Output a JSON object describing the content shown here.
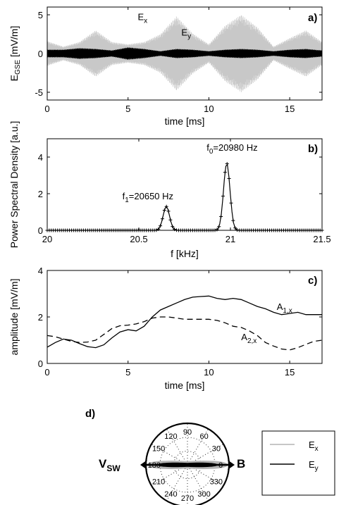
{
  "chart_data": [
    {
      "type": "line",
      "panel": "a)",
      "xlabel": "time [ms]",
      "ylabel": "E",
      "ylabel_sub": "GSE",
      "ylabel_unit": " [mV/m]",
      "xlim": [
        0,
        17
      ],
      "ylim": [
        -6,
        6
      ],
      "xticks": [
        0,
        5,
        10,
        15
      ],
      "yticks": [
        -5,
        0,
        5
      ],
      "annotations": [
        {
          "text": "E",
          "sub": "x",
          "x": 5.6,
          "y": 4.3
        },
        {
          "text": "E",
          "sub": "y",
          "x": 8.3,
          "y": 2.3
        }
      ],
      "series": [
        {
          "name": "Ex",
          "color": "#c8c8c8",
          "kind": "beat-envelope",
          "envelope_t": [
            0,
            1,
            2,
            3,
            4,
            5,
            6,
            7,
            8,
            9,
            10,
            11,
            12,
            13,
            14,
            15,
            16,
            17
          ],
          "envelope_amp": [
            1.6,
            0.9,
            1.5,
            3.0,
            1.5,
            1.2,
            1.5,
            2.5,
            4.8,
            2.6,
            1.2,
            3.6,
            5.0,
            3.4,
            0.9,
            2.0,
            3.0,
            1.5
          ]
        },
        {
          "name": "Ey",
          "color": "#000000",
          "kind": "beat-envelope",
          "envelope_t": [
            0,
            1,
            2,
            3,
            4,
            5,
            6,
            7,
            8,
            9,
            10,
            11,
            12,
            13,
            14,
            15,
            16,
            17
          ],
          "envelope_amp": [
            0.5,
            0.5,
            0.7,
            0.6,
            0.4,
            0.8,
            0.6,
            0.3,
            0.6,
            0.5,
            0.3,
            0.5,
            0.6,
            0.5,
            0.3,
            0.5,
            0.6,
            0.4
          ]
        }
      ]
    },
    {
      "type": "line",
      "panel": "b)",
      "xlabel": "f [kHz]",
      "ylabel": "Power Spectral Density [a.u.]",
      "xlim": [
        20,
        21.5
      ],
      "ylim": [
        0,
        5
      ],
      "xticks": [
        20,
        20.5,
        21,
        21.5
      ],
      "xtick_labels": [
        "20",
        "20.5",
        "21",
        "21.5"
      ],
      "yticks": [
        0,
        2,
        4
      ],
      "annotations": [
        {
          "text": "f",
          "sub": "0",
          "rest": "=20980 Hz",
          "x": 20.87,
          "y": 4.35
        },
        {
          "text": "f",
          "sub": "1",
          "rest": "=20650 Hz",
          "x": 20.41,
          "y": 1.7
        }
      ],
      "series": [
        {
          "name": "PSD",
          "marker": "+",
          "peaks": [
            {
              "center": 20.98,
              "height": 3.65,
              "width": 0.025
            },
            {
              "center": 20.65,
              "height": 1.3,
              "width": 0.025
            }
          ]
        }
      ]
    },
    {
      "type": "line",
      "panel": "c)",
      "xlabel": "time [ms]",
      "ylabel": "amplitude [mV/m]",
      "xlim": [
        0,
        17
      ],
      "ylim": [
        0,
        4
      ],
      "xticks": [
        0,
        5,
        10,
        15
      ],
      "yticks": [
        0,
        2,
        4
      ],
      "annotations": [
        {
          "text": "A",
          "sub": "1,x",
          "x": 14.2,
          "y": 2.3
        },
        {
          "text": "A",
          "sub": "2,x",
          "x": 12.0,
          "y": 1.0
        }
      ],
      "series": [
        {
          "name": "A1,x",
          "style": "solid",
          "x": [
            0,
            0.5,
            1,
            1.5,
            2,
            2.5,
            3,
            3.5,
            4,
            4.5,
            5,
            5.5,
            6,
            6.5,
            7,
            7.5,
            8,
            8.5,
            9,
            9.5,
            10,
            10.5,
            11,
            11.5,
            12,
            12.5,
            13,
            13.5,
            14,
            14.5,
            15,
            15.5,
            16,
            16.5,
            17
          ],
          "y": [
            0.7,
            0.9,
            1.05,
            1.0,
            0.85,
            0.72,
            0.68,
            0.8,
            1.1,
            1.35,
            1.45,
            1.4,
            1.6,
            2.0,
            2.3,
            2.45,
            2.6,
            2.75,
            2.85,
            2.88,
            2.9,
            2.8,
            2.75,
            2.8,
            2.75,
            2.6,
            2.45,
            2.35,
            2.2,
            2.1,
            2.15,
            2.2,
            2.1,
            2.1,
            2.1
          ]
        },
        {
          "name": "A2,x",
          "style": "dashed",
          "x": [
            0,
            0.5,
            1,
            1.5,
            2,
            2.5,
            3,
            3.5,
            4,
            4.5,
            5,
            5.5,
            6,
            6.5,
            7,
            7.5,
            8,
            8.5,
            9,
            9.5,
            10,
            10.5,
            11,
            11.5,
            12,
            12.5,
            13,
            13.5,
            14,
            14.5,
            15,
            15.5,
            16,
            16.5,
            17
          ],
          "y": [
            1.2,
            1.15,
            1.05,
            0.95,
            0.9,
            0.92,
            1.0,
            1.25,
            1.5,
            1.62,
            1.65,
            1.7,
            1.8,
            1.95,
            2.0,
            2.0,
            1.95,
            1.9,
            1.9,
            1.9,
            1.9,
            1.85,
            1.75,
            1.6,
            1.55,
            1.4,
            1.2,
            0.9,
            0.75,
            0.62,
            0.58,
            0.68,
            0.82,
            0.95,
            1.0
          ]
        }
      ]
    },
    {
      "type": "polar",
      "panel": "d)",
      "angle_ticks": [
        "0",
        "30",
        "60",
        "90",
        "120",
        "150",
        "180",
        "210",
        "240",
        "270",
        "300",
        "330"
      ],
      "arrow_labels": {
        "left": "V",
        "left_sub": "SW",
        "right": "B"
      },
      "legend": {
        "placement": "right"
      },
      "series": [
        {
          "name": "E",
          "sub": "x",
          "color": "#b4b4b4",
          "dominant_angle_deg": 0
        },
        {
          "name": "E",
          "sub": "y",
          "color": "#000000",
          "dominant_angle_deg": 0
        }
      ]
    }
  ]
}
